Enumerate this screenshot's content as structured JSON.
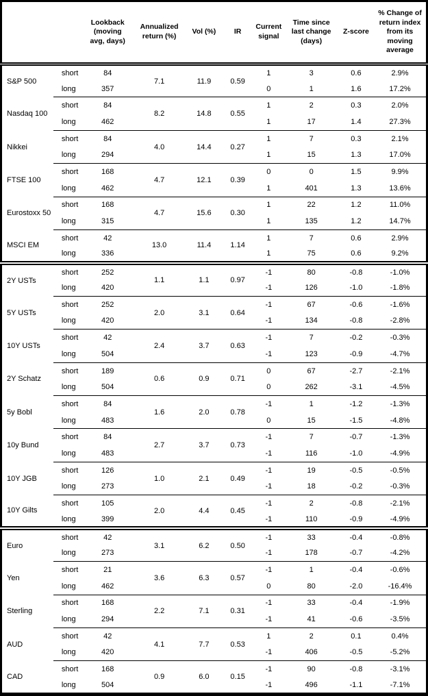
{
  "colors": {
    "text": "#000000",
    "background": "#ffffff",
    "border": "#000000"
  },
  "table": {
    "headers": [
      "",
      "",
      "Lookback\n(moving\navg, days)",
      "Annualized\nreturn (%)",
      "Vol (%)",
      "IR",
      "Current\nsignal",
      "Time since\nlast change\n(days)",
      "Z-score",
      "% Change of\nreturn index\nfrom its\nmoving\naverage"
    ],
    "sections": [
      {
        "assets": [
          {
            "name": "S&P 500",
            "annualized_return": "7.1",
            "vol": "11.9",
            "ir": "0.59",
            "rows": [
              {
                "label": "short",
                "lookback": "84",
                "signal": "1",
                "time_since_change": "3",
                "zscore": "0.6",
                "pct_change": "2.9%"
              },
              {
                "label": "long",
                "lookback": "357",
                "signal": "0",
                "time_since_change": "1",
                "zscore": "1.6",
                "pct_change": "17.2%"
              }
            ]
          },
          {
            "name": "Nasdaq 100",
            "annualized_return": "8.2",
            "vol": "14.8",
            "ir": "0.55",
            "rows": [
              {
                "label": "short",
                "lookback": "84",
                "signal": "1",
                "time_since_change": "2",
                "zscore": "0.3",
                "pct_change": "2.0%"
              },
              {
                "label": "long",
                "lookback": "462",
                "signal": "1",
                "time_since_change": "17",
                "zscore": "1.4",
                "pct_change": "27.3%"
              }
            ]
          },
          {
            "name": "Nikkei",
            "annualized_return": "4.0",
            "vol": "14.4",
            "ir": "0.27",
            "rows": [
              {
                "label": "short",
                "lookback": "84",
                "signal": "1",
                "time_since_change": "7",
                "zscore": "0.3",
                "pct_change": "2.1%"
              },
              {
                "label": "long",
                "lookback": "294",
                "signal": "1",
                "time_since_change": "15",
                "zscore": "1.3",
                "pct_change": "17.0%"
              }
            ]
          },
          {
            "name": "FTSE 100",
            "annualized_return": "4.7",
            "vol": "12.1",
            "ir": "0.39",
            "rows": [
              {
                "label": "short",
                "lookback": "168",
                "signal": "0",
                "time_since_change": "0",
                "zscore": "1.5",
                "pct_change": "9.9%"
              },
              {
                "label": "long",
                "lookback": "462",
                "signal": "1",
                "time_since_change": "401",
                "zscore": "1.3",
                "pct_change": "13.6%"
              }
            ]
          },
          {
            "name": "Eurostoxx 50",
            "annualized_return": "4.7",
            "vol": "15.6",
            "ir": "0.30",
            "rows": [
              {
                "label": "short",
                "lookback": "168",
                "signal": "1",
                "time_since_change": "22",
                "zscore": "1.2",
                "pct_change": "11.0%"
              },
              {
                "label": "long",
                "lookback": "315",
                "signal": "1",
                "time_since_change": "135",
                "zscore": "1.2",
                "pct_change": "14.7%"
              }
            ]
          },
          {
            "name": "MSCI EM",
            "annualized_return": "13.0",
            "vol": "11.4",
            "ir": "1.14",
            "rows": [
              {
                "label": "short",
                "lookback": "42",
                "signal": "1",
                "time_since_change": "7",
                "zscore": "0.6",
                "pct_change": "2.9%"
              },
              {
                "label": "long",
                "lookback": "336",
                "signal": "1",
                "time_since_change": "75",
                "zscore": "0.6",
                "pct_change": "9.2%"
              }
            ]
          }
        ]
      },
      {
        "assets": [
          {
            "name": "2Y USTs",
            "annualized_return": "1.1",
            "vol": "1.1",
            "ir": "0.97",
            "rows": [
              {
                "label": "short",
                "lookback": "252",
                "signal": "-1",
                "time_since_change": "80",
                "zscore": "-0.8",
                "pct_change": "-1.0%"
              },
              {
                "label": "long",
                "lookback": "420",
                "signal": "-1",
                "time_since_change": "126",
                "zscore": "-1.0",
                "pct_change": "-1.8%"
              }
            ]
          },
          {
            "name": "5Y USTs",
            "annualized_return": "2.0",
            "vol": "3.1",
            "ir": "0.64",
            "rows": [
              {
                "label": "short",
                "lookback": "252",
                "signal": "-1",
                "time_since_change": "67",
                "zscore": "-0.6",
                "pct_change": "-1.6%"
              },
              {
                "label": "long",
                "lookback": "420",
                "signal": "-1",
                "time_since_change": "134",
                "zscore": "-0.8",
                "pct_change": "-2.8%"
              }
            ]
          },
          {
            "name": "10Y USTs",
            "annualized_return": "2.4",
            "vol": "3.7",
            "ir": "0.63",
            "rows": [
              {
                "label": "short",
                "lookback": "42",
                "signal": "-1",
                "time_since_change": "7",
                "zscore": "-0.2",
                "pct_change": "-0.3%"
              },
              {
                "label": "long",
                "lookback": "504",
                "signal": "-1",
                "time_since_change": "123",
                "zscore": "-0.9",
                "pct_change": "-4.7%"
              }
            ]
          },
          {
            "name": "2Y Schatz",
            "annualized_return": "0.6",
            "vol": "0.9",
            "ir": "0.71",
            "rows": [
              {
                "label": "short",
                "lookback": "189",
                "signal": "0",
                "time_since_change": "67",
                "zscore": "-2.7",
                "pct_change": "-2.1%"
              },
              {
                "label": "long",
                "lookback": "504",
                "signal": "0",
                "time_since_change": "262",
                "zscore": "-3.1",
                "pct_change": "-4.5%"
              }
            ]
          },
          {
            "name": "5y Bobl",
            "annualized_return": "1.6",
            "vol": "2.0",
            "ir": "0.78",
            "rows": [
              {
                "label": "short",
                "lookback": "84",
                "signal": "-1",
                "time_since_change": "1",
                "zscore": "-1.2",
                "pct_change": "-1.3%"
              },
              {
                "label": "long",
                "lookback": "483",
                "signal": "0",
                "time_since_change": "15",
                "zscore": "-1.5",
                "pct_change": "-4.8%"
              }
            ]
          },
          {
            "name": "10y Bund",
            "annualized_return": "2.7",
            "vol": "3.7",
            "ir": "0.73",
            "rows": [
              {
                "label": "short",
                "lookback": "84",
                "signal": "-1",
                "time_since_change": "7",
                "zscore": "-0.7",
                "pct_change": "-1.3%"
              },
              {
                "label": "long",
                "lookback": "483",
                "signal": "-1",
                "time_since_change": "116",
                "zscore": "-1.0",
                "pct_change": "-4.9%"
              }
            ]
          },
          {
            "name": "10Y JGB",
            "annualized_return": "1.0",
            "vol": "2.1",
            "ir": "0.49",
            "rows": [
              {
                "label": "short",
                "lookback": "126",
                "signal": "-1",
                "time_since_change": "19",
                "zscore": "-0.5",
                "pct_change": "-0.5%"
              },
              {
                "label": "long",
                "lookback": "273",
                "signal": "-1",
                "time_since_change": "18",
                "zscore": "-0.2",
                "pct_change": "-0.3%"
              }
            ]
          },
          {
            "name": "10Y Gilts",
            "annualized_return": "2.0",
            "vol": "4.4",
            "ir": "0.45",
            "rows": [
              {
                "label": "short",
                "lookback": "105",
                "signal": "-1",
                "time_since_change": "2",
                "zscore": "-0.8",
                "pct_change": "-2.1%"
              },
              {
                "label": "long",
                "lookback": "399",
                "signal": "-1",
                "time_since_change": "110",
                "zscore": "-0.9",
                "pct_change": "-4.9%"
              }
            ]
          }
        ]
      },
      {
        "assets": [
          {
            "name": "Euro",
            "annualized_return": "3.1",
            "vol": "6.2",
            "ir": "0.50",
            "rows": [
              {
                "label": "short",
                "lookback": "42",
                "signal": "-1",
                "time_since_change": "33",
                "zscore": "-0.4",
                "pct_change": "-0.8%"
              },
              {
                "label": "long",
                "lookback": "273",
                "signal": "-1",
                "time_since_change": "178",
                "zscore": "-0.7",
                "pct_change": "-4.2%"
              }
            ]
          },
          {
            "name": "Yen",
            "annualized_return": "3.6",
            "vol": "6.3",
            "ir": "0.57",
            "rows": [
              {
                "label": "short",
                "lookback": "21",
                "signal": "-1",
                "time_since_change": "1",
                "zscore": "-0.4",
                "pct_change": "-0.6%"
              },
              {
                "label": "long",
                "lookback": "462",
                "signal": "0",
                "time_since_change": "80",
                "zscore": "-2.0",
                "pct_change": "-16.4%"
              }
            ]
          },
          {
            "name": "Sterling",
            "annualized_return": "2.2",
            "vol": "7.1",
            "ir": "0.31",
            "rows": [
              {
                "label": "short",
                "lookback": "168",
                "signal": "-1",
                "time_since_change": "33",
                "zscore": "-0.4",
                "pct_change": "-1.9%"
              },
              {
                "label": "long",
                "lookback": "294",
                "signal": "-1",
                "time_since_change": "41",
                "zscore": "-0.6",
                "pct_change": "-3.5%"
              }
            ]
          },
          {
            "name": "AUD",
            "annualized_return": "4.1",
            "vol": "7.7",
            "ir": "0.53",
            "rows": [
              {
                "label": "short",
                "lookback": "42",
                "signal": "1",
                "time_since_change": "2",
                "zscore": "0.1",
                "pct_change": "0.4%"
              },
              {
                "label": "long",
                "lookback": "420",
                "signal": "-1",
                "time_since_change": "406",
                "zscore": "-0.5",
                "pct_change": "-5.2%"
              }
            ]
          },
          {
            "name": "CAD",
            "annualized_return": "0.9",
            "vol": "6.0",
            "ir": "0.15",
            "rows": [
              {
                "label": "short",
                "lookback": "168",
                "signal": "-1",
                "time_since_change": "90",
                "zscore": "-0.8",
                "pct_change": "-3.1%"
              },
              {
                "label": "long",
                "lookback": "504",
                "signal": "-1",
                "time_since_change": "496",
                "zscore": "-1.1",
                "pct_change": "-7.1%"
              }
            ]
          }
        ]
      }
    ]
  }
}
